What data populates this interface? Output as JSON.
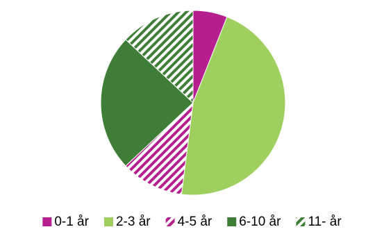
{
  "chart_data": {
    "type": "pie",
    "title": "",
    "start_angle_deg": 0,
    "direction": "clockwise",
    "legend_position": "bottom",
    "slices": [
      {
        "label": "0-1 år",
        "value": 6,
        "color": "#b5208e",
        "pattern": "solid"
      },
      {
        "label": "2-3 år",
        "value": 46,
        "color": "#9fd05f",
        "pattern": "solid"
      },
      {
        "label": "4-5 år",
        "value": 11,
        "color": "#b5208e",
        "pattern": "hatch"
      },
      {
        "label": "6-10 år",
        "value": 24,
        "color": "#3f7e36",
        "pattern": "solid"
      },
      {
        "label": "11- år",
        "value": 13,
        "color": "#3f7e36",
        "pattern": "hatch"
      }
    ]
  }
}
